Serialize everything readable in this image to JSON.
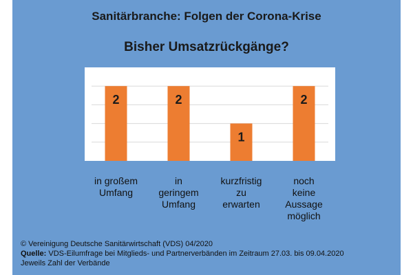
{
  "header": {
    "title": "Sanitärbranche: Folgen der Corona-Krise"
  },
  "chart_data": {
    "type": "bar",
    "title": "Bisher Umsatzrückgänge?",
    "categories": [
      [
        "in großem",
        "Umfang"
      ],
      [
        "in",
        "geringem",
        "Umfang"
      ],
      [
        "kurzfristig",
        "zu",
        "erwarten"
      ],
      [
        "noch",
        "keine",
        "Aussage",
        "möglich"
      ]
    ],
    "values": [
      2,
      2,
      1,
      2
    ],
    "data_labels": [
      "2",
      "2",
      "1",
      "2"
    ],
    "ylim": [
      0,
      2.5
    ],
    "bar_color": "#ed7d31",
    "grid": true,
    "legend": "none",
    "xlabel": "",
    "ylabel": ""
  },
  "footer": {
    "copyright": "© Vereinigung Deutsche Sanitärwirtschaft (VDS) 04/2020",
    "source_label": "Quelle:",
    "source_text": " VDS-Eilumfrage bei Mitglieds- und Partnerverbänden im Zeitraum 27.03. bis 09.04.2020",
    "note": "Jeweils Zahl der Verbände"
  }
}
